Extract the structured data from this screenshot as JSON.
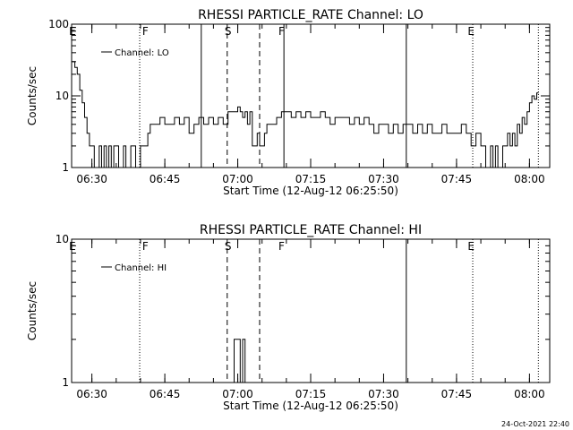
{
  "chart_data": [
    {
      "type": "line",
      "title": "RHESSI PARTICLE_RATE Channel: LO",
      "xlabel": "Start Time (12-Aug-12 06:25:50)",
      "ylabel": "Counts/sec",
      "yscale": "log",
      "ylim": [
        1,
        100
      ],
      "xlim": [
        "06:25:50",
        "08:04:10"
      ],
      "ytick_labels": [
        "1",
        "10",
        "100"
      ],
      "xtick_labels": [
        "06:30",
        "06:45",
        "07:00",
        "07:15",
        "07:30",
        "07:45",
        "08:00"
      ],
      "legend": {
        "position": "top-left",
        "entries": [
          "Channel: LO"
        ]
      },
      "event_labels": [
        {
          "text": "E",
          "time": "06:26"
        },
        {
          "text": "F",
          "time": "06:41"
        },
        {
          "text": "S",
          "time": "06:58"
        },
        {
          "text": "F",
          "time": "07:09"
        },
        {
          "text": "E",
          "time": "07:48"
        }
      ],
      "markers": {
        "dotted": [
          "06:39:50",
          "07:48:20",
          "08:01:50"
        ],
        "solid": [
          "06:52:30",
          "07:09:30",
          "07:34:40"
        ],
        "dashed": [
          "06:57:50",
          "07:04:30"
        ]
      },
      "series": [
        {
          "x": [
            "06:25:50",
            "06:26:30",
            "06:27:00",
            "06:27:30",
            "06:28:00",
            "06:28:30",
            "06:29:00",
            "06:29:30",
            "06:30:00",
            "06:30:30",
            "06:31:00",
            "06:31:30",
            "06:32:00",
            "06:32:30",
            "06:33:00",
            "06:33:30",
            "06:34:00",
            "06:34:30",
            "06:35:00",
            "06:35:30",
            "06:36:00",
            "06:36:30",
            "06:37:00",
            "06:37:30",
            "06:38:00",
            "06:38:30",
            "06:39:00",
            "06:39:30",
            "06:40:00",
            "06:40:30",
            "06:41:00",
            "06:41:30",
            "06:42:00",
            "06:43:00",
            "06:44:00",
            "06:45:00",
            "06:46:00",
            "06:47:00",
            "06:48:00",
            "06:49:00",
            "06:50:00",
            "06:51:00",
            "06:52:00",
            "06:53:00",
            "06:54:00",
            "06:55:00",
            "06:56:00",
            "06:57:00",
            "06:58:00",
            "06:59:00",
            "07:00:00",
            "07:00:30",
            "07:01:00",
            "07:01:30",
            "07:02:00",
            "07:02:30",
            "07:03:00",
            "07:03:30",
            "07:04:00",
            "07:04:30",
            "07:05:00",
            "07:05:30",
            "07:06:00",
            "07:07:00",
            "07:08:00",
            "07:09:00",
            "07:10:00",
            "07:11:00",
            "07:12:00",
            "07:13:00",
            "07:14:00",
            "07:15:00",
            "07:16:00",
            "07:17:00",
            "07:18:00",
            "07:19:00",
            "07:20:00",
            "07:21:00",
            "07:22:00",
            "07:23:00",
            "07:24:00",
            "07:25:00",
            "07:26:00",
            "07:27:00",
            "07:28:00",
            "07:29:00",
            "07:30:00",
            "07:31:00",
            "07:32:00",
            "07:33:00",
            "07:34:00",
            "07:35:00",
            "07:36:00",
            "07:37:00",
            "07:38:00",
            "07:39:00",
            "07:40:00",
            "07:41:00",
            "07:42:00",
            "07:43:00",
            "07:44:00",
            "07:45:00",
            "07:46:00",
            "07:47:00",
            "07:48:00",
            "07:49:00",
            "07:50:00",
            "07:50:30",
            "07:51:00",
            "07:51:30",
            "07:52:00",
            "07:52:30",
            "07:53:00",
            "07:53:30",
            "07:54:00",
            "07:54:30",
            "07:55:00",
            "07:55:30",
            "07:56:00",
            "07:56:30",
            "07:57:00",
            "07:57:30",
            "07:58:00",
            "07:58:30",
            "07:59:00",
            "07:59:30",
            "08:00:00",
            "08:00:30",
            "08:01:00",
            "08:01:30"
          ],
          "values": [
            30,
            25,
            20,
            12,
            8,
            5,
            3,
            2,
            2,
            1,
            1,
            2,
            1,
            2,
            1,
            2,
            1,
            2,
            2,
            1,
            1,
            2,
            1,
            1,
            2,
            2,
            1,
            1,
            2,
            2,
            2,
            3,
            4,
            4,
            5,
            4,
            4,
            5,
            4,
            5,
            3,
            4,
            5,
            4,
            5,
            4,
            5,
            4,
            6,
            6,
            7,
            6,
            5,
            6,
            4,
            6,
            2,
            2,
            3,
            2,
            2,
            3,
            4,
            4,
            5,
            6,
            6,
            5,
            6,
            5,
            6,
            5,
            5,
            6,
            5,
            4,
            5,
            5,
            5,
            4,
            5,
            4,
            5,
            4,
            3,
            4,
            4,
            3,
            4,
            3,
            4,
            4,
            3,
            4,
            3,
            4,
            3,
            3,
            4,
            3,
            3,
            3,
            4,
            3,
            2,
            3,
            2,
            2,
            1,
            1,
            2,
            1,
            2,
            1,
            1,
            2,
            2,
            3,
            2,
            3,
            2,
            4,
            3,
            5,
            4,
            6,
            8,
            10,
            9,
            11
          ]
        }
      ]
    },
    {
      "type": "line",
      "title": "RHESSI PARTICLE_RATE Channel: HI",
      "xlabel": "Start Time (12-Aug-12 06:25:50)",
      "ylabel": "Counts/sec",
      "yscale": "log",
      "ylim": [
        1,
        10
      ],
      "xlim": [
        "06:25:50",
        "08:04:10"
      ],
      "ytick_labels": [
        "1",
        "10"
      ],
      "xtick_labels": [
        "06:30",
        "06:45",
        "07:00",
        "07:15",
        "07:30",
        "07:45",
        "08:00"
      ],
      "legend": {
        "position": "top-left",
        "entries": [
          "Channel: HI"
        ]
      },
      "event_labels": [
        {
          "text": "E",
          "time": "06:26"
        },
        {
          "text": "F",
          "time": "06:41"
        },
        {
          "text": "S",
          "time": "06:58"
        },
        {
          "text": "F",
          "time": "07:09"
        },
        {
          "text": "E",
          "time": "07:48"
        }
      ],
      "markers": {
        "dotted": [
          "06:39:50",
          "07:48:20",
          "08:01:50"
        ],
        "solid": [
          "07:34:40"
        ],
        "dashed": [
          "06:57:50",
          "07:04:30"
        ]
      },
      "series": [
        {
          "x": [
            "06:59:00",
            "06:59:15",
            "06:59:30",
            "07:00:00",
            "07:00:30",
            "07:01:00",
            "07:01:30"
          ],
          "values": [
            1,
            2,
            2,
            2,
            1,
            2,
            1
          ]
        }
      ]
    }
  ],
  "footer": {
    "timestamp": "24-Oct-2021 22:40"
  }
}
